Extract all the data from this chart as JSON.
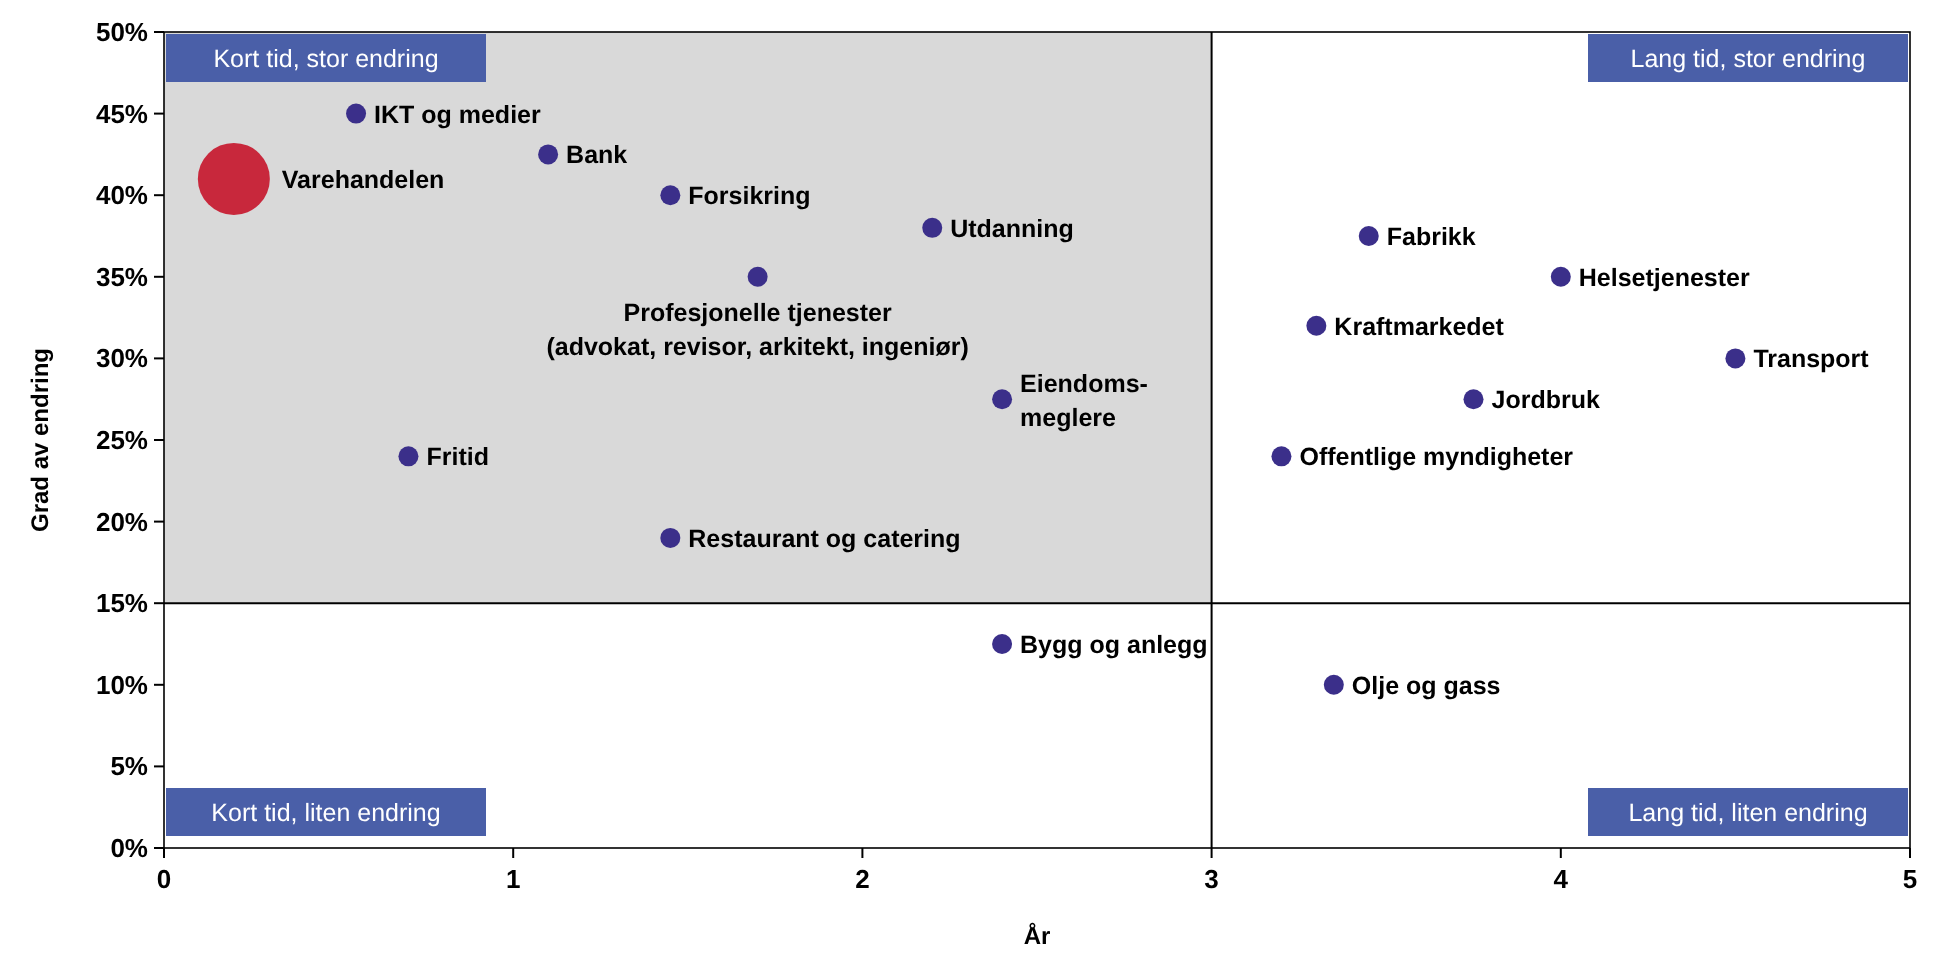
{
  "chart_data": {
    "type": "scatter",
    "xlabel": "År",
    "ylabel": "Grad av endring",
    "xlim": [
      0,
      5
    ],
    "xticks": [
      0,
      1,
      2,
      3,
      4,
      5
    ],
    "ylim": [
      0,
      50
    ],
    "yticks": [
      {
        "value": 0,
        "label": "0%"
      },
      {
        "value": 5,
        "label": "5%"
      },
      {
        "value": 10,
        "label": "10%"
      },
      {
        "value": 15,
        "label": "15%"
      },
      {
        "value": 20,
        "label": "20%"
      },
      {
        "value": 25,
        "label": "25%"
      },
      {
        "value": 30,
        "label": "30%"
      },
      {
        "value": 35,
        "label": "35%"
      },
      {
        "value": 40,
        "label": "40%"
      },
      {
        "value": 45,
        "label": "45%"
      },
      {
        "value": 50,
        "label": "50%"
      }
    ],
    "series": [
      {
        "color": "#3b2f8a",
        "x": [
          0.55,
          1.1,
          1.45,
          2.2,
          1.7,
          2.4,
          0.7,
          1.45,
          2.4,
          3.35,
          3.45,
          4.0,
          3.3,
          3.75,
          3.2,
          4.5
        ],
        "values": [
          45,
          42.5,
          40,
          38,
          35,
          27.5,
          24,
          19,
          12.5,
          10,
          37.5,
          35,
          32,
          27.5,
          24,
          30
        ]
      },
      {
        "color": "#c8283c",
        "x": [
          0.2
        ],
        "values": [
          41
        ]
      }
    ],
    "ref_lines": [
      {
        "axis": "x",
        "value": 3,
        "color": "#000000"
      },
      {
        "axis": "y",
        "value": 15,
        "color": "#000000"
      }
    ],
    "bands": [
      {
        "axis": "x",
        "from": 0,
        "to": 3,
        "color": "#d9d9d9"
      }
    ],
    "grid": false,
    "marker": "circle",
    "annotations": [
      "Kort tid, stor endring",
      "Lang tid, stor endring",
      "Kort tid, liten endring",
      "Lang tid, liten endring",
      {
        "text": "IKT og medier",
        "x": 0.55,
        "y": 45
      },
      {
        "text": "Bank",
        "x": 1.1,
        "y": 42.5
      },
      {
        "text": "Forsikring",
        "x": 1.45,
        "y": 40
      },
      {
        "text": "Utdanning",
        "x": 2.2,
        "y": 38
      },
      {
        "text": "Profesjonelle tjenester\n(advokat, revisor, arkitekt, ingeniør)",
        "x": 1.7,
        "y": 35
      },
      {
        "text": "Eiendoms-\nmeglere",
        "x": 2.4,
        "y": 27.5
      },
      {
        "text": "Fritid",
        "x": 0.7,
        "y": 24
      },
      {
        "text": "Restaurant og catering",
        "x": 1.45,
        "y": 19
      },
      {
        "text": "Bygg og anlegg",
        "x": 2.4,
        "y": 12.5
      },
      {
        "text": "Olje og gass",
        "x": 3.35,
        "y": 10
      },
      {
        "text": "Fabrikk",
        "x": 3.45,
        "y": 37.5
      },
      {
        "text": "Helsetjenester",
        "x": 4.0,
        "y": 35
      },
      {
        "text": "Kraftmarkedet",
        "x": 3.3,
        "y": 32
      },
      {
        "text": "Jordbruk",
        "x": 3.75,
        "y": 27.5
      },
      {
        "text": "Offentlige myndigheter",
        "x": 3.2,
        "y": 24
      },
      {
        "text": "Transport",
        "x": 4.5,
        "y": 30
      },
      {
        "text": "Varehandelen",
        "x": 0.2,
        "y": 41
      }
    ]
  }
}
